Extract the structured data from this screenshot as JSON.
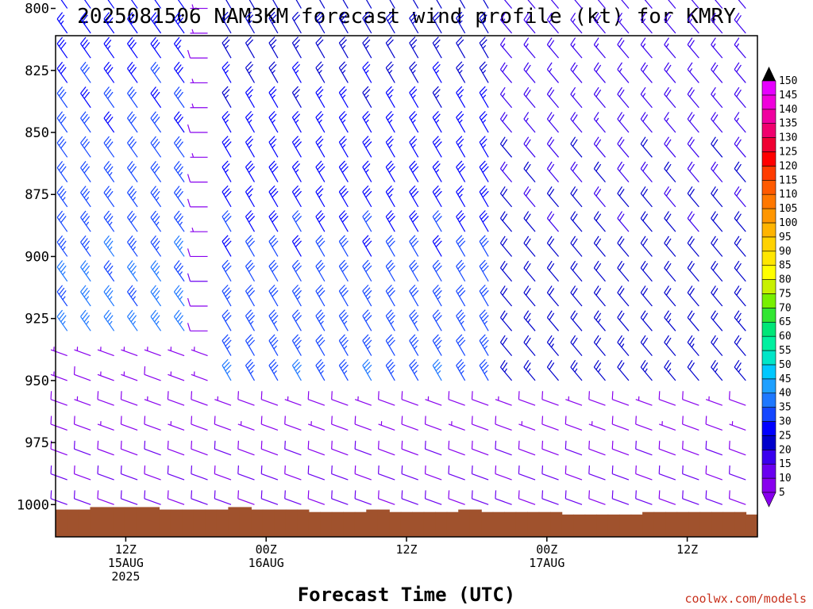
{
  "chart_data": {
    "type": "wind_barb_profile",
    "title": "2025081506 NAM3KM forecast wind profile (kt) for KMRY",
    "xlabel": "Forecast Time (UTC)",
    "ylabel": "",
    "y_ticks": [
      800,
      825,
      850,
      875,
      900,
      925,
      950,
      975,
      1000
    ],
    "y_range_hPa": [
      811,
      1013
    ],
    "x_ticks": [
      {
        "hour": 6,
        "lines": [
          "12Z",
          "15AUG",
          "2025"
        ]
      },
      {
        "hour": 18,
        "lines": [
          "00Z",
          "16AUG"
        ]
      },
      {
        "hour": 30,
        "lines": [
          "12Z"
        ]
      },
      {
        "hour": 42,
        "lines": [
          "00Z",
          "17AUG"
        ]
      },
      {
        "hour": 54,
        "lines": [
          "12Z"
        ]
      }
    ],
    "x_range_hours": [
      0,
      60
    ],
    "colorbar": {
      "ticks": [
        5,
        10,
        15,
        20,
        25,
        30,
        35,
        40,
        45,
        50,
        55,
        60,
        65,
        70,
        75,
        80,
        85,
        90,
        95,
        100,
        105,
        110,
        115,
        120,
        125,
        130,
        135,
        140,
        145,
        150
      ],
      "colors": [
        "#8800ee",
        "#6a00f0",
        "#3a00ee",
        "#0000cc",
        "#0000ff",
        "#1446ff",
        "#1e78ff",
        "#1ea0ff",
        "#00c8ff",
        "#00e6c8",
        "#00f0a0",
        "#00e678",
        "#32e632",
        "#78f000",
        "#c8f000",
        "#ffff00",
        "#ffe600",
        "#ffd200",
        "#ffb400",
        "#ff9600",
        "#ff7800",
        "#ff5a00",
        "#ff3c00",
        "#ff0000",
        "#f00032",
        "#f0006e",
        "#f000a0",
        "#f000dc",
        "#e600ff"
      ]
    },
    "terrain_color": "#a0522d",
    "surface_pressure_hPa": [
      1002,
      1002,
      1002,
      1001,
      1001,
      1001,
      1001,
      1001,
      1001,
      1002,
      1002,
      1002,
      1002,
      1002,
      1002,
      1001,
      1001,
      1002,
      1002,
      1002,
      1002,
      1002,
      1003,
      1003,
      1003,
      1003,
      1003,
      1002,
      1002,
      1003,
      1003,
      1003,
      1003,
      1003,
      1003,
      1002,
      1002,
      1003,
      1003,
      1003,
      1003,
      1003,
      1003,
      1003,
      1004,
      1004,
      1004,
      1004,
      1004,
      1004,
      1004,
      1003,
      1003,
      1003,
      1003,
      1003,
      1003,
      1003,
      1003,
      1003,
      1004
    ],
    "barb_levels_hPa": [
      800,
      810,
      820,
      830,
      840,
      850,
      860,
      870,
      880,
      890,
      900,
      910,
      920,
      930,
      940,
      950,
      960,
      970,
      980,
      990,
      1000
    ],
    "barb_hours": [
      1,
      3,
      5,
      7,
      9,
      11,
      13,
      15,
      17,
      19,
      21,
      23,
      25,
      27,
      29,
      31,
      33,
      35,
      37,
      39,
      41,
      43,
      45,
      47,
      49,
      51,
      53,
      55,
      57,
      59
    ],
    "wind_regimes": [
      {
        "hours": [
          0,
          12
        ],
        "levels_hPa": [
          790,
          935
        ],
        "dir_deg": 325,
        "speed_kt": [
          25,
          40
        ]
      },
      {
        "hours": [
          12,
          14
        ],
        "levels_hPa": [
          790,
          935
        ],
        "dir_deg": 270,
        "speed_kt": [
          5,
          10
        ]
      },
      {
        "hours": [
          14,
          38
        ],
        "levels_hPa": [
          790,
          960
        ],
        "dir_deg": 330,
        "speed_kt": [
          20,
          40
        ]
      },
      {
        "hours": [
          38,
          60
        ],
        "levels_hPa": [
          790,
          960
        ],
        "dir_deg": 320,
        "speed_kt": [
          15,
          25
        ]
      },
      {
        "hours": [
          0,
          60
        ],
        "levels_hPa": [
          935,
          1010
        ],
        "dir_deg": 290,
        "speed_kt": [
          5,
          12
        ]
      }
    ],
    "credit": "coolwx.com/models"
  }
}
